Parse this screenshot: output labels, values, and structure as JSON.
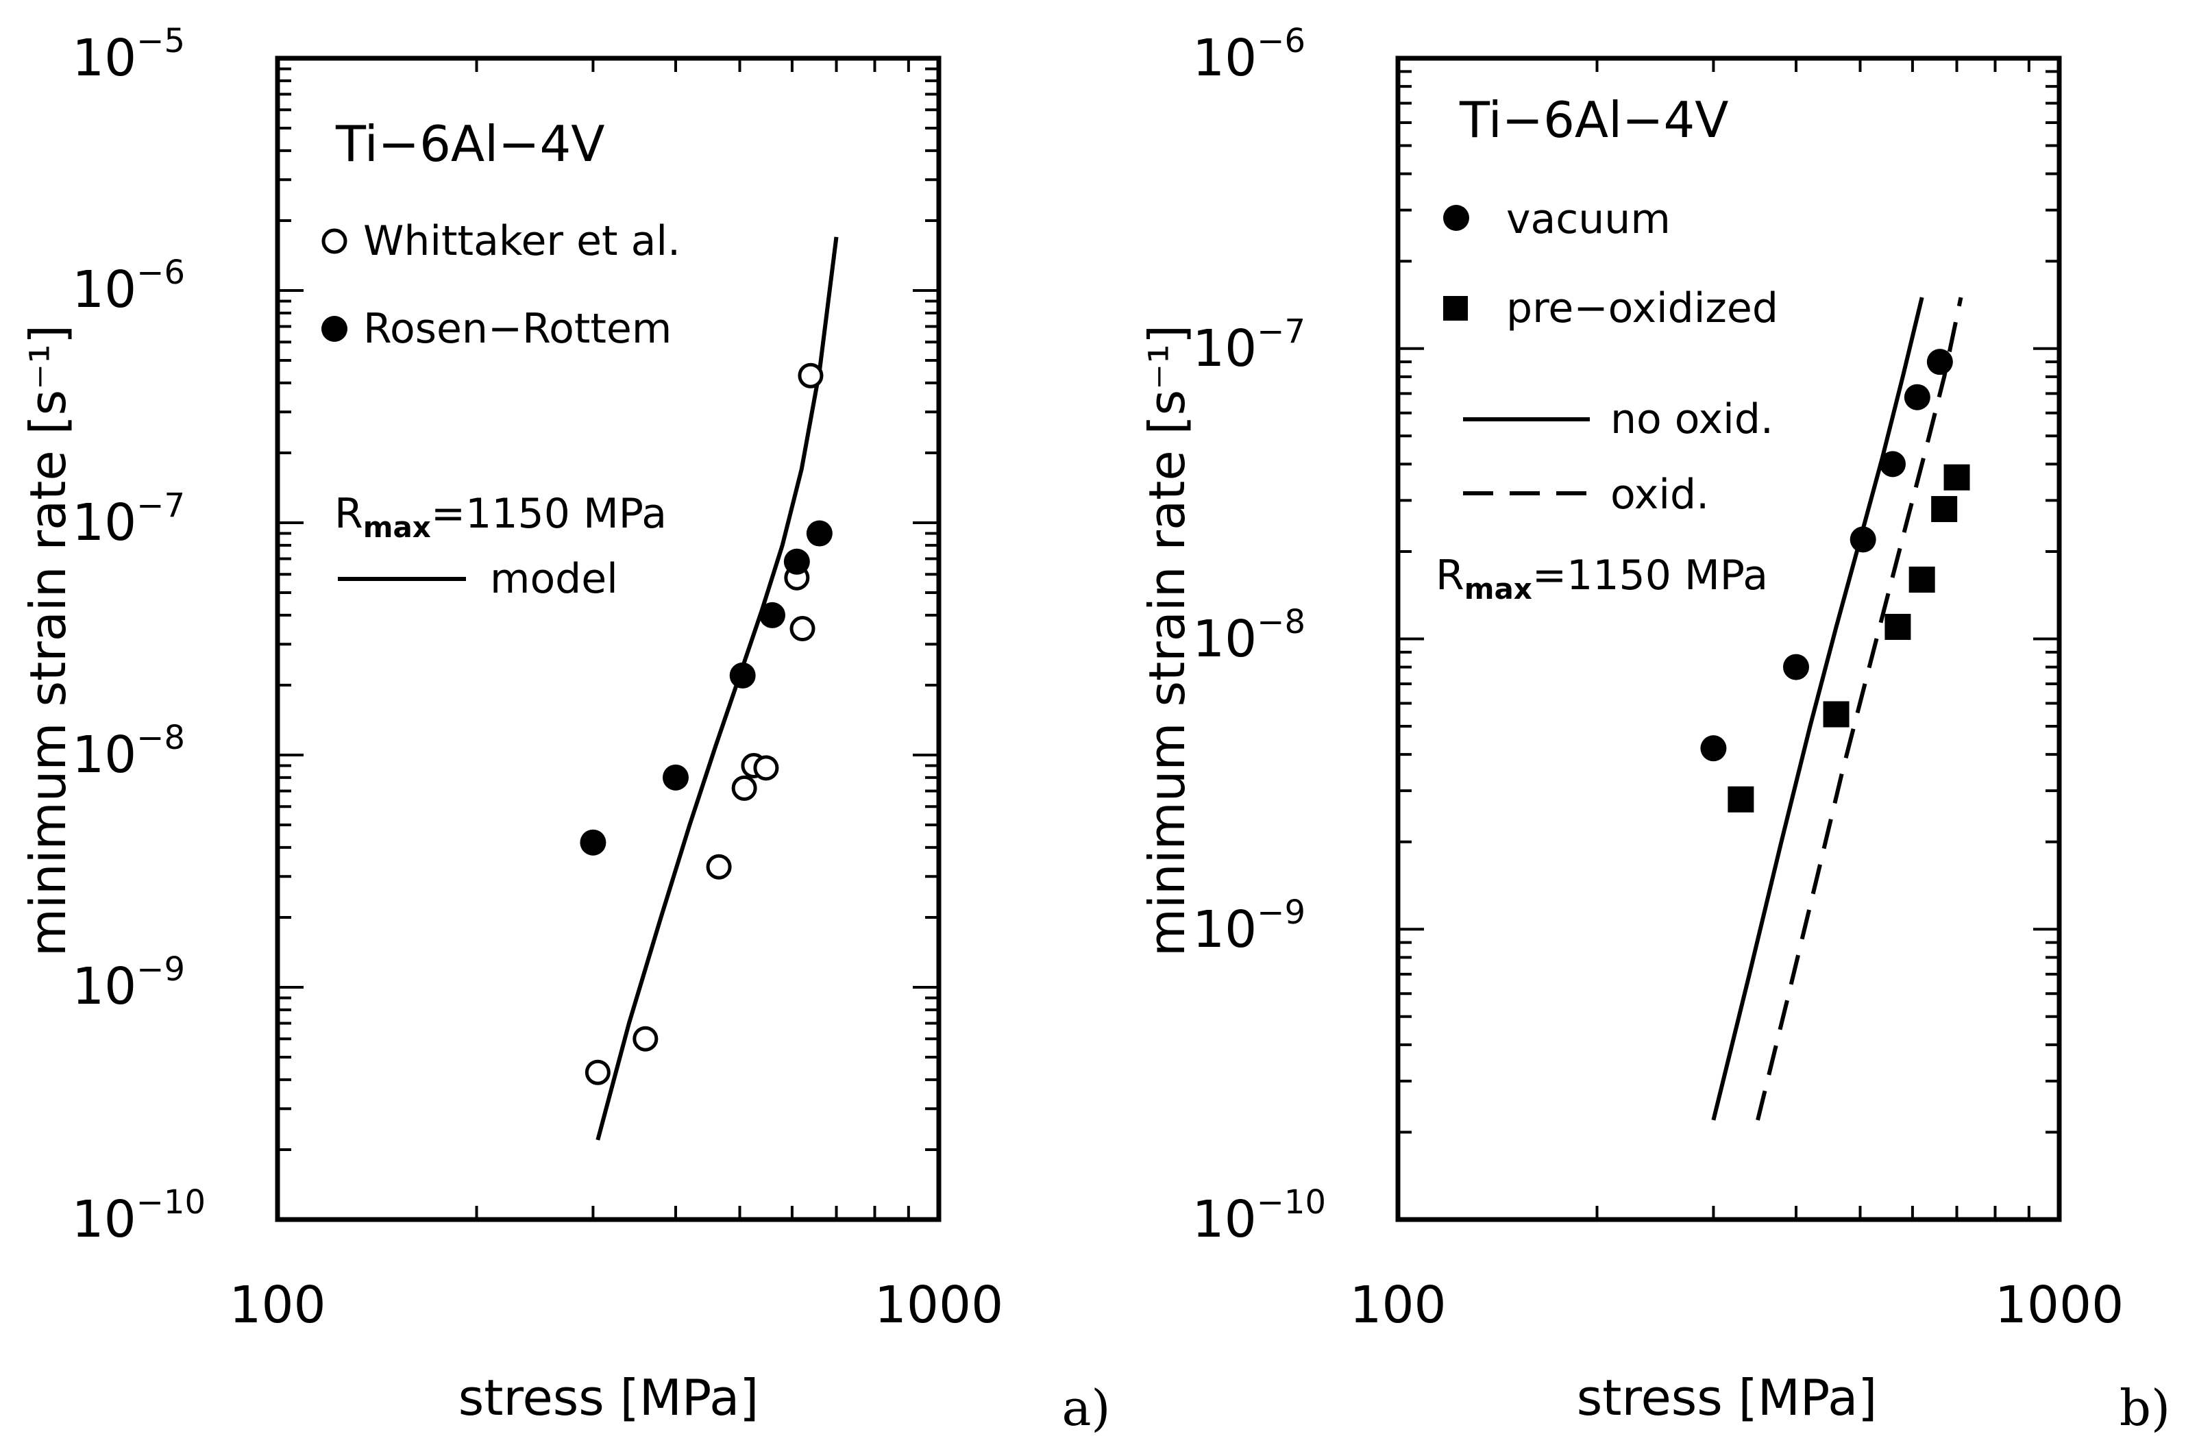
{
  "chart_data": [
    {
      "panel": "a)",
      "type": "scatter",
      "xscale": "log",
      "yscale": "log",
      "xlim": [
        100,
        1000
      ],
      "ylim": [
        1e-10,
        1e-05
      ],
      "xlabel": "stress [MPa]",
      "ylabel": "minimum strain rate [s⁻¹]",
      "alloy": "Ti−6Al−4V",
      "x_ticks": [
        "100",
        "1000"
      ],
      "y_ticks": [
        {
          "base": "10",
          "exp": "−5"
        },
        {
          "base": "10",
          "exp": "−6"
        },
        {
          "base": "10",
          "exp": "−7"
        },
        {
          "base": "10",
          "exp": "−8"
        },
        {
          "base": "10",
          "exp": "−9"
        },
        {
          "base": "10",
          "exp": "−10"
        }
      ],
      "rmax": {
        "R": "R",
        "sub": "max",
        "value": "=1150 MPa"
      },
      "series": [
        {
          "name": "Whittaker et al.",
          "marker": "open-circle",
          "x": [
            305,
            360,
            465,
            508,
            525,
            548,
            610,
            622,
            640
          ],
          "y": [
            4.3e-10,
            6e-10,
            3.3e-09,
            7.2e-09,
            9e-09,
            8.8e-09,
            5.8e-08,
            3.5e-08,
            4.3e-07
          ]
        },
        {
          "name": "Rosen−Rottem",
          "marker": "filled-circle",
          "x": [
            300,
            400,
            505,
            560,
            610,
            660
          ],
          "y": [
            4.2e-09,
            8e-09,
            2.2e-08,
            4e-08,
            6.8e-08,
            9e-08
          ]
        },
        {
          "name": "model",
          "line": "solid",
          "x": [
            305,
            340,
            380,
            420,
            460,
            500,
            540,
            580,
            620,
            660,
            700
          ],
          "y": [
            2.2e-10,
            7e-10,
            2e-09,
            5e-09,
            1.1e-08,
            2.2e-08,
            4.2e-08,
            8e-08,
            1.7e-07,
            4.5e-07,
            1.7e-06
          ]
        }
      ]
    },
    {
      "panel": "b)",
      "type": "scatter",
      "xscale": "log",
      "yscale": "log",
      "xlim": [
        100,
        1000
      ],
      "ylim": [
        1e-10,
        1e-06
      ],
      "xlabel": "stress [MPa]",
      "ylabel": "minimum strain rate [s⁻¹]",
      "alloy": "Ti−6Al−4V",
      "x_ticks": [
        "100",
        "1000"
      ],
      "y_ticks": [
        {
          "base": "10",
          "exp": "−6"
        },
        {
          "base": "10",
          "exp": "−7"
        },
        {
          "base": "10",
          "exp": "−8"
        },
        {
          "base": "10",
          "exp": "−9"
        },
        {
          "base": "10",
          "exp": "−10"
        }
      ],
      "rmax": {
        "R": "R",
        "sub": "max",
        "value": "=1150 MPa"
      },
      "series": [
        {
          "name": "vacuum",
          "marker": "filled-circle",
          "x": [
            300,
            400,
            505,
            560,
            610,
            660
          ],
          "y": [
            4.2e-09,
            8e-09,
            2.2e-08,
            4e-08,
            6.8e-08,
            9e-08
          ]
        },
        {
          "name": "pre−oxidized",
          "marker": "filled-square",
          "x": [
            330,
            460,
            570,
            620,
            670,
            700
          ],
          "y": [
            2.8e-09,
            5.5e-09,
            1.1e-08,
            1.6e-08,
            2.8e-08,
            3.6e-08
          ]
        },
        {
          "name": "no oxid.",
          "line": "solid",
          "x": [
            300,
            340,
            380,
            420,
            460,
            500,
            540,
            580,
            620
          ],
          "y": [
            2.2e-10,
            7e-10,
            2e-09,
            5e-09,
            1.1e-08,
            2.2e-08,
            4.2e-08,
            8e-08,
            1.5e-07
          ]
        },
        {
          "name": "oxid.",
          "line": "dashed",
          "x": [
            350,
            390,
            430,
            470,
            510,
            550,
            590,
            630,
            670,
            710
          ],
          "y": [
            2.2e-10,
            6e-10,
            1.5e-09,
            3.5e-09,
            7.2e-09,
            1.4e-08,
            2.6e-08,
            4.6e-08,
            8e-08,
            1.5e-07
          ]
        }
      ]
    }
  ]
}
